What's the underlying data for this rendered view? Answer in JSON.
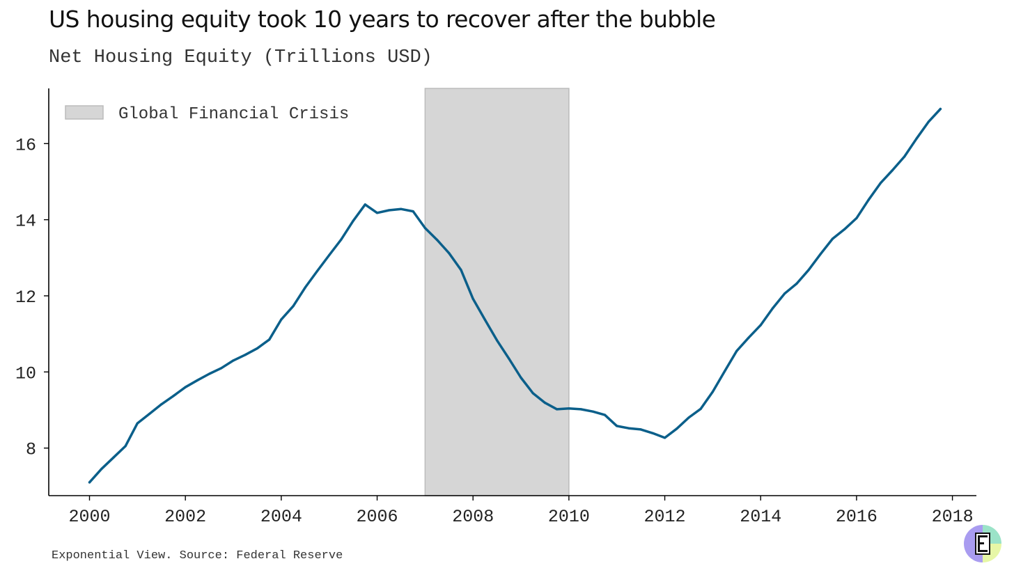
{
  "title": "US housing equity took 10 years to recover after the bubble",
  "subtitle": "Net Housing Equity (Trillions USD)",
  "footer": "Exponential View. Source: Federal Reserve",
  "colors": {
    "line": "#0b5f8a",
    "shade": "#d6d6d6",
    "shade_edge": "#bbbbbb",
    "axis": "#000000"
  },
  "chart_data": {
    "type": "line",
    "title": "US housing equity took 10 years to recover after the bubble",
    "ylabel": "Net Housing Equity (Trillions USD)",
    "xlabel": "",
    "xlim": [
      1999.15,
      2018.5
    ],
    "ylim": [
      6.75,
      17.45
    ],
    "x_ticks": [
      2000,
      2002,
      2004,
      2006,
      2008,
      2010,
      2012,
      2014,
      2016,
      2018
    ],
    "y_ticks": [
      8,
      10,
      12,
      14,
      16
    ],
    "shaded_region": {
      "label": "Global Financial Crisis",
      "x_start": 2007.0,
      "x_end": 2010.0
    },
    "legend": {
      "entries": [
        "Global Financial Crisis"
      ],
      "position": "top-left"
    },
    "series": [
      {
        "name": "Net Housing Equity",
        "x": [
          2000.0,
          2000.25,
          2000.5,
          2000.75,
          2001.0,
          2001.25,
          2001.5,
          2001.75,
          2002.0,
          2002.25,
          2002.5,
          2002.75,
          2003.0,
          2003.25,
          2003.5,
          2003.75,
          2004.0,
          2004.25,
          2004.5,
          2004.75,
          2005.0,
          2005.25,
          2005.5,
          2005.75,
          2006.0,
          2006.25,
          2006.5,
          2006.75,
          2007.0,
          2007.25,
          2007.5,
          2007.75,
          2008.0,
          2008.25,
          2008.5,
          2008.75,
          2009.0,
          2009.25,
          2009.5,
          2009.75,
          2010.0,
          2010.25,
          2010.5,
          2010.75,
          2011.0,
          2011.25,
          2011.5,
          2011.75,
          2012.0,
          2012.25,
          2012.5,
          2012.75,
          2013.0,
          2013.25,
          2013.5,
          2013.75,
          2014.0,
          2014.25,
          2014.5,
          2014.75,
          2015.0,
          2015.25,
          2015.5,
          2015.75,
          2016.0,
          2016.25,
          2016.5,
          2016.75,
          2017.0,
          2017.25,
          2017.5,
          2017.75
        ],
        "values": [
          7.1,
          7.45,
          7.75,
          8.05,
          8.65,
          8.9,
          9.15,
          9.37,
          9.6,
          9.78,
          9.95,
          10.1,
          10.3,
          10.45,
          10.62,
          10.85,
          11.38,
          11.73,
          12.22,
          12.65,
          13.07,
          13.48,
          13.97,
          14.4,
          14.18,
          14.25,
          14.28,
          14.22,
          13.78,
          13.47,
          13.12,
          12.68,
          11.92,
          11.37,
          10.83,
          10.35,
          9.85,
          9.44,
          9.19,
          9.02,
          9.04,
          9.02,
          8.96,
          8.87,
          8.58,
          8.52,
          8.49,
          8.39,
          8.27,
          8.51,
          8.8,
          9.03,
          9.48,
          10.02,
          10.55,
          10.9,
          11.23,
          11.67,
          12.06,
          12.32,
          12.68,
          13.1,
          13.5,
          13.75,
          14.04,
          14.52,
          14.96,
          15.3,
          15.66,
          16.13,
          16.57,
          16.91
        ]
      }
    ]
  }
}
